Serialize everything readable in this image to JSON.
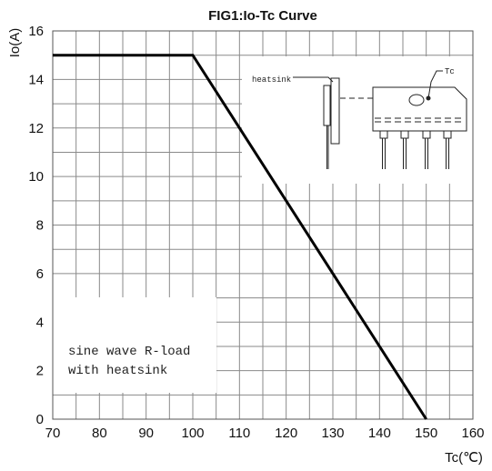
{
  "chart_data": {
    "type": "line",
    "title": "FIG1:Io-Tc Curve",
    "xlabel": "Tc(℃)",
    "ylabel": "Io(A)",
    "xlim": [
      70,
      160
    ],
    "ylim": [
      0,
      16
    ],
    "x_ticks": [
      70,
      80,
      90,
      100,
      110,
      120,
      130,
      140,
      150,
      160
    ],
    "y_ticks": [
      0,
      2,
      4,
      6,
      8,
      10,
      12,
      14,
      16
    ],
    "grid": true,
    "series": [
      {
        "x": [
          70,
          100,
          150
        ],
        "y": [
          15,
          15,
          0
        ]
      }
    ],
    "annotations": {
      "note_line1": "sine wave R-load",
      "note_line2": "with heatsink",
      "inset_heatsink": "heatsink",
      "inset_tc": "Tc"
    }
  }
}
